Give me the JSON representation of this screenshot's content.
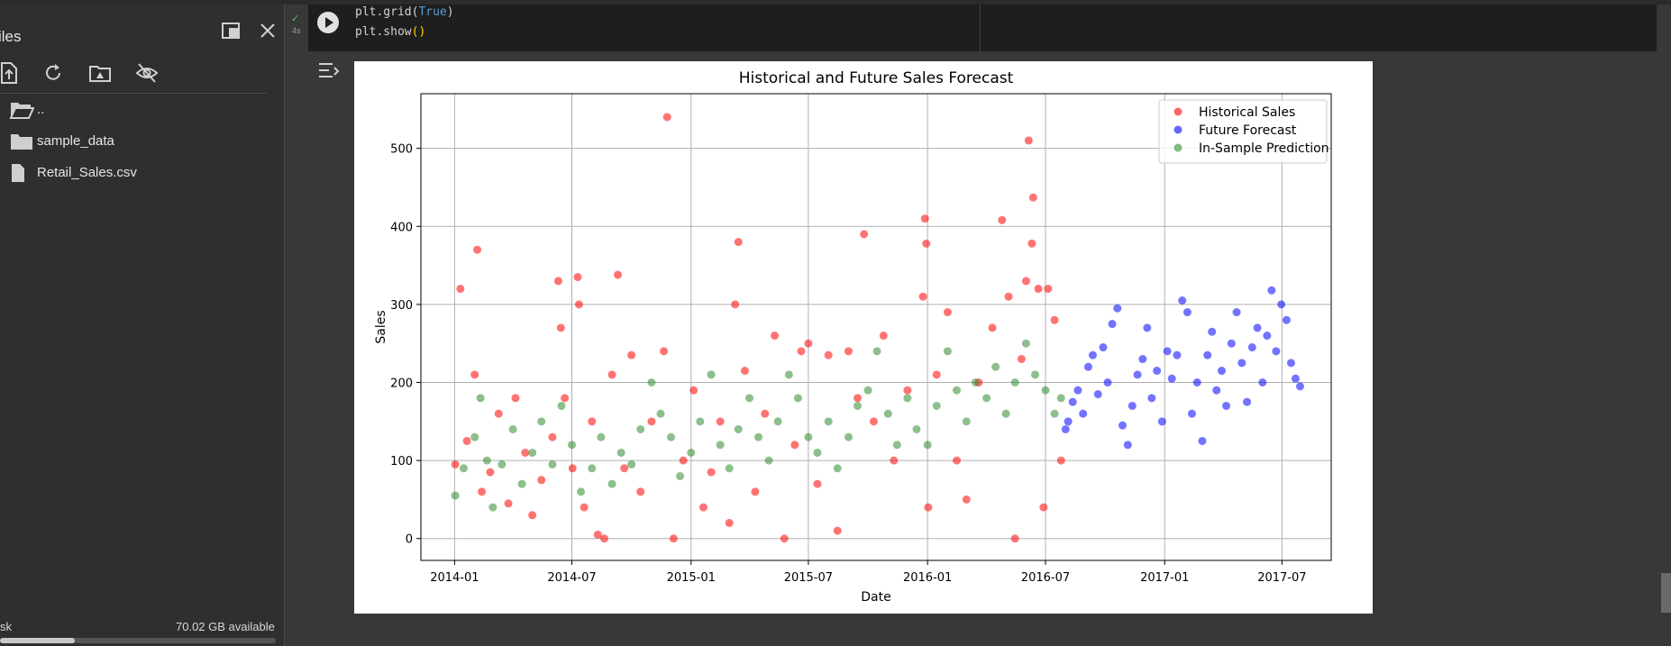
{
  "sidebar": {
    "title": "iles",
    "files": [
      {
        "name": "..",
        "icon": "folder-open-icon"
      },
      {
        "name": "sample_data",
        "icon": "folder-icon"
      },
      {
        "name": "Retail_Sales.csv",
        "icon": "file-icon"
      }
    ],
    "disk_label": "sk",
    "disk_available": "70.02 GB available",
    "disk_usage_fraction": 0.27
  },
  "cell": {
    "status_check": "✓",
    "exec_time": "4s",
    "code_line1": {
      "fn": "plt.grid(",
      "kw": "True",
      "end": ")"
    },
    "code_line2": {
      "fn": "plt.show",
      "paren": "()"
    }
  },
  "chart_data": {
    "type": "scatter",
    "title": "Historical and Future Sales Forecast",
    "xlabel": "Date",
    "ylabel": "Sales",
    "x_ticks": [
      "2014-01",
      "2014-07",
      "2015-01",
      "2015-07",
      "2016-01",
      "2016-07",
      "2017-01",
      "2017-07"
    ],
    "y_ticks": [
      0,
      100,
      200,
      300,
      400,
      500
    ],
    "xlim": [
      "2013-11-10",
      "2017-09-15"
    ],
    "ylim": [
      -28,
      570
    ],
    "grid": true,
    "legend_position": "top-right",
    "series": [
      {
        "name": "Historical Sales",
        "color": "#ff0000",
        "points": [
          [
            "2014-01-02",
            95
          ],
          [
            "2014-01-10",
            320
          ],
          [
            "2014-01-20",
            125
          ],
          [
            "2014-02-01",
            210
          ],
          [
            "2014-02-05",
            370
          ],
          [
            "2014-02-12",
            60
          ],
          [
            "2014-02-25",
            85
          ],
          [
            "2014-03-10",
            160
          ],
          [
            "2014-03-25",
            45
          ],
          [
            "2014-04-05",
            180
          ],
          [
            "2014-04-20",
            110
          ],
          [
            "2014-05-01",
            30
          ],
          [
            "2014-05-15",
            75
          ],
          [
            "2014-06-01",
            130
          ],
          [
            "2014-06-10",
            330
          ],
          [
            "2014-06-14",
            270
          ],
          [
            "2014-06-20",
            180
          ],
          [
            "2014-07-02",
            90
          ],
          [
            "2014-07-10",
            335
          ],
          [
            "2014-07-12",
            300
          ],
          [
            "2014-07-20",
            40
          ],
          [
            "2014-08-01",
            150
          ],
          [
            "2014-08-10",
            5
          ],
          [
            "2014-08-20",
            0
          ],
          [
            "2014-09-01",
            210
          ],
          [
            "2014-09-10",
            338
          ],
          [
            "2014-09-20",
            90
          ],
          [
            "2014-10-01",
            235
          ],
          [
            "2014-10-15",
            60
          ],
          [
            "2014-11-01",
            150
          ],
          [
            "2014-11-20",
            240
          ],
          [
            "2014-11-25",
            540
          ],
          [
            "2014-12-05",
            0
          ],
          [
            "2014-12-20",
            100
          ],
          [
            "2015-01-05",
            190
          ],
          [
            "2015-01-20",
            40
          ],
          [
            "2015-02-01",
            85
          ],
          [
            "2015-02-15",
            150
          ],
          [
            "2015-03-01",
            20
          ],
          [
            "2015-03-10",
            300
          ],
          [
            "2015-03-15",
            380
          ],
          [
            "2015-03-25",
            215
          ],
          [
            "2015-04-10",
            60
          ],
          [
            "2015-04-25",
            160
          ],
          [
            "2015-05-10",
            260
          ],
          [
            "2015-05-25",
            0
          ],
          [
            "2015-06-10",
            120
          ],
          [
            "2015-06-20",
            240
          ],
          [
            "2015-07-01",
            250
          ],
          [
            "2015-07-15",
            70
          ],
          [
            "2015-08-01",
            235
          ],
          [
            "2015-08-15",
            10
          ],
          [
            "2015-09-01",
            240
          ],
          [
            "2015-09-15",
            180
          ],
          [
            "2015-09-25",
            390
          ],
          [
            "2015-10-10",
            150
          ],
          [
            "2015-10-25",
            260
          ],
          [
            "2015-11-10",
            100
          ],
          [
            "2015-12-01",
            190
          ],
          [
            "2015-12-25",
            310
          ],
          [
            "2015-12-28",
            410
          ],
          [
            "2015-12-30",
            378
          ],
          [
            "2016-01-02",
            40
          ],
          [
            "2016-01-15",
            210
          ],
          [
            "2016-02-01",
            290
          ],
          [
            "2016-02-15",
            100
          ],
          [
            "2016-03-01",
            50
          ],
          [
            "2016-03-20",
            200
          ],
          [
            "2016-04-10",
            270
          ],
          [
            "2016-04-25",
            408
          ],
          [
            "2016-05-05",
            310
          ],
          [
            "2016-05-15",
            0
          ],
          [
            "2016-05-25",
            230
          ],
          [
            "2016-06-01",
            330
          ],
          [
            "2016-06-05",
            510
          ],
          [
            "2016-06-10",
            378
          ],
          [
            "2016-06-12",
            437
          ],
          [
            "2016-06-20",
            320
          ],
          [
            "2016-06-28",
            40
          ],
          [
            "2016-07-05",
            320
          ],
          [
            "2016-07-15",
            280
          ],
          [
            "2016-07-25",
            100
          ]
        ]
      },
      {
        "name": "Future Forecast",
        "color": "#0000ff",
        "points": [
          [
            "2016-08-01",
            140
          ],
          [
            "2016-08-05",
            150
          ],
          [
            "2016-08-12",
            175
          ],
          [
            "2016-08-20",
            190
          ],
          [
            "2016-08-28",
            160
          ],
          [
            "2016-09-05",
            220
          ],
          [
            "2016-09-12",
            235
          ],
          [
            "2016-09-20",
            185
          ],
          [
            "2016-09-28",
            245
          ],
          [
            "2016-10-05",
            200
          ],
          [
            "2016-10-12",
            275
          ],
          [
            "2016-10-20",
            295
          ],
          [
            "2016-10-28",
            145
          ],
          [
            "2016-11-05",
            120
          ],
          [
            "2016-11-12",
            170
          ],
          [
            "2016-11-20",
            210
          ],
          [
            "2016-11-28",
            230
          ],
          [
            "2016-12-05",
            270
          ],
          [
            "2016-12-12",
            180
          ],
          [
            "2016-12-20",
            215
          ],
          [
            "2016-12-28",
            150
          ],
          [
            "2017-01-05",
            240
          ],
          [
            "2017-01-12",
            205
          ],
          [
            "2017-01-20",
            235
          ],
          [
            "2017-01-28",
            305
          ],
          [
            "2017-02-05",
            290
          ],
          [
            "2017-02-12",
            160
          ],
          [
            "2017-02-20",
            200
          ],
          [
            "2017-02-28",
            125
          ],
          [
            "2017-03-08",
            235
          ],
          [
            "2017-03-15",
            265
          ],
          [
            "2017-03-22",
            190
          ],
          [
            "2017-03-30",
            215
          ],
          [
            "2017-04-06",
            170
          ],
          [
            "2017-04-14",
            250
          ],
          [
            "2017-04-22",
            290
          ],
          [
            "2017-04-30",
            225
          ],
          [
            "2017-05-08",
            175
          ],
          [
            "2017-05-16",
            245
          ],
          [
            "2017-05-24",
            270
          ],
          [
            "2017-06-01",
            200
          ],
          [
            "2017-06-08",
            260
          ],
          [
            "2017-06-15",
            318
          ],
          [
            "2017-06-22",
            240
          ],
          [
            "2017-06-30",
            300
          ],
          [
            "2017-07-08",
            280
          ],
          [
            "2017-07-15",
            225
          ],
          [
            "2017-07-22",
            205
          ],
          [
            "2017-07-29",
            195
          ]
        ]
      },
      {
        "name": "In-Sample Prediction",
        "color": "#2e8b2e",
        "points": [
          [
            "2014-01-02",
            55
          ],
          [
            "2014-01-15",
            90
          ],
          [
            "2014-02-01",
            130
          ],
          [
            "2014-02-10",
            180
          ],
          [
            "2014-02-20",
            100
          ],
          [
            "2014-03-01",
            40
          ],
          [
            "2014-03-15",
            95
          ],
          [
            "2014-04-01",
            140
          ],
          [
            "2014-04-15",
            70
          ],
          [
            "2014-05-01",
            110
          ],
          [
            "2014-05-15",
            150
          ],
          [
            "2014-06-01",
            95
          ],
          [
            "2014-06-15",
            170
          ],
          [
            "2014-07-01",
            120
          ],
          [
            "2014-07-15",
            60
          ],
          [
            "2014-08-01",
            90
          ],
          [
            "2014-08-15",
            130
          ],
          [
            "2014-09-01",
            70
          ],
          [
            "2014-09-15",
            110
          ],
          [
            "2014-10-01",
            95
          ],
          [
            "2014-10-15",
            140
          ],
          [
            "2014-11-01",
            200
          ],
          [
            "2014-11-15",
            160
          ],
          [
            "2014-12-01",
            130
          ],
          [
            "2014-12-15",
            80
          ],
          [
            "2015-01-01",
            110
          ],
          [
            "2015-01-15",
            150
          ],
          [
            "2015-02-01",
            210
          ],
          [
            "2015-02-15",
            120
          ],
          [
            "2015-03-01",
            90
          ],
          [
            "2015-03-15",
            140
          ],
          [
            "2015-04-01",
            180
          ],
          [
            "2015-04-15",
            130
          ],
          [
            "2015-05-01",
            100
          ],
          [
            "2015-05-15",
            150
          ],
          [
            "2015-06-01",
            210
          ],
          [
            "2015-06-15",
            180
          ],
          [
            "2015-07-01",
            130
          ],
          [
            "2015-07-15",
            110
          ],
          [
            "2015-08-01",
            150
          ],
          [
            "2015-08-15",
            90
          ],
          [
            "2015-09-01",
            130
          ],
          [
            "2015-09-15",
            170
          ],
          [
            "2015-10-01",
            190
          ],
          [
            "2015-10-15",
            240
          ],
          [
            "2015-11-01",
            160
          ],
          [
            "2015-11-15",
            120
          ],
          [
            "2015-12-01",
            180
          ],
          [
            "2015-12-15",
            140
          ],
          [
            "2016-01-01",
            120
          ],
          [
            "2016-01-15",
            170
          ],
          [
            "2016-02-01",
            240
          ],
          [
            "2016-02-15",
            190
          ],
          [
            "2016-03-01",
            150
          ],
          [
            "2016-03-15",
            200
          ],
          [
            "2016-04-01",
            180
          ],
          [
            "2016-04-15",
            220
          ],
          [
            "2016-05-01",
            160
          ],
          [
            "2016-05-15",
            200
          ],
          [
            "2016-06-01",
            250
          ],
          [
            "2016-06-15",
            210
          ],
          [
            "2016-07-01",
            190
          ],
          [
            "2016-07-15",
            160
          ],
          [
            "2016-07-25",
            180
          ]
        ]
      }
    ]
  }
}
